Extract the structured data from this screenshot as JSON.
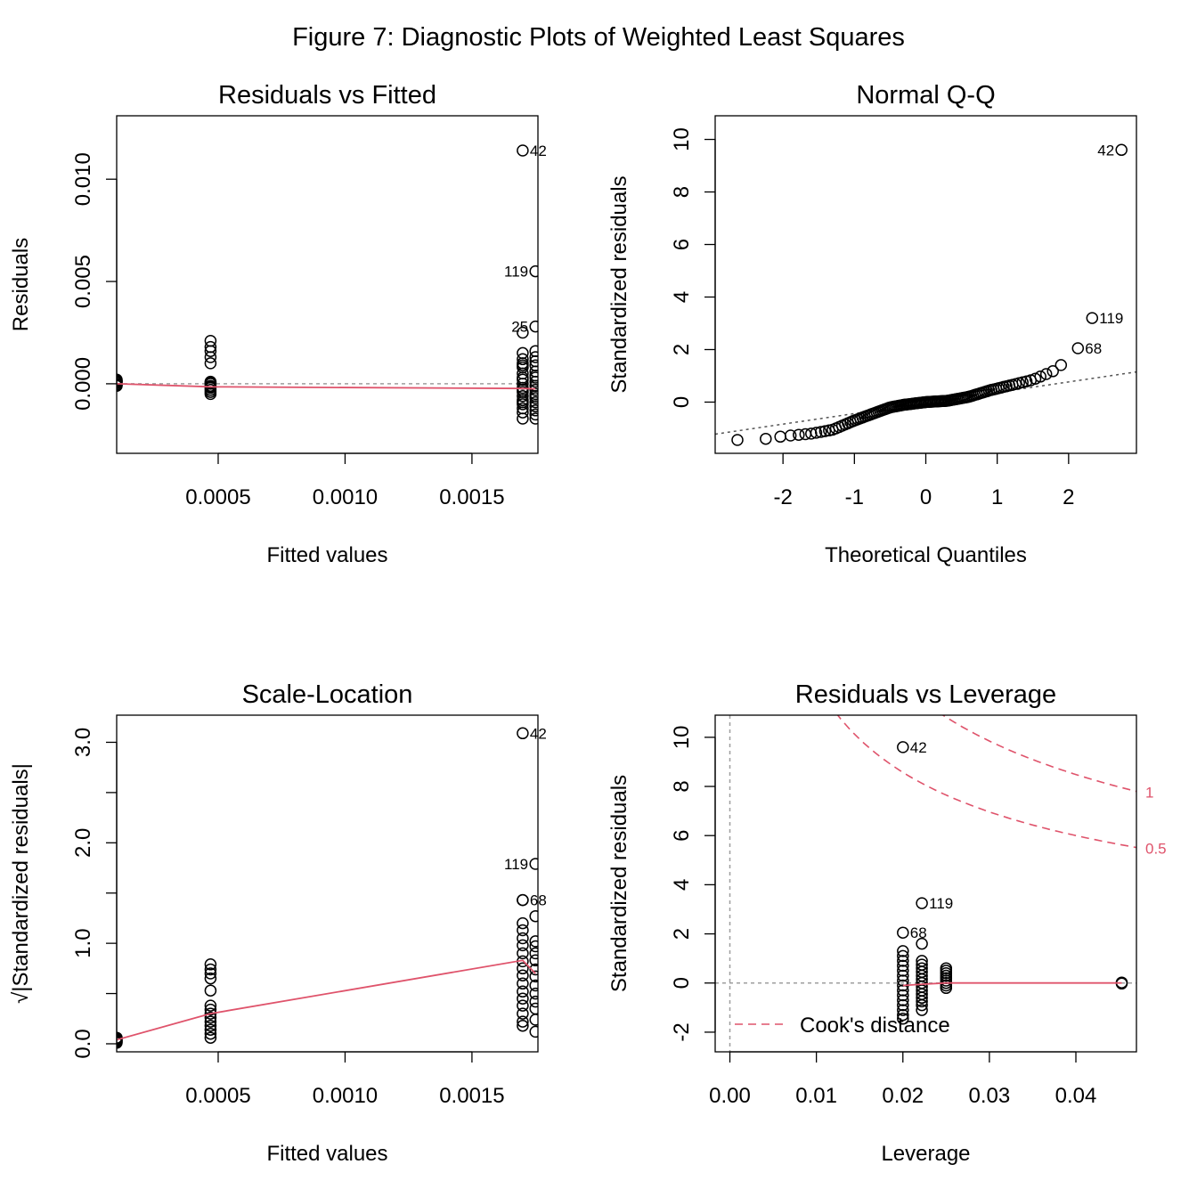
{
  "figure_title": "Figure 7: Diagnostic Plots of Weighted Least Squares",
  "colors": {
    "smooth": "#DF536B",
    "cooks": "#DF536B",
    "ref": "#9E9E9E",
    "qqline": "#555555",
    "points": "#000000"
  },
  "chart_data": [
    {
      "type": "scatter",
      "title": "Residuals vs Fitted",
      "xlabel": "Fitted values",
      "ylabel": "Residuals",
      "xlim": [
        0.0001,
        0.00176
      ],
      "ylim": [
        -0.0034,
        0.0131
      ],
      "xticks": [
        0.0005,
        0.001,
        0.0015
      ],
      "xtick_labels": [
        "0.0005",
        "0.0010",
        "0.0015"
      ],
      "yticks": [
        0.0,
        0.005,
        0.01
      ],
      "ytick_labels": [
        "0.000",
        "0.005",
        "0.010"
      ],
      "groups": [
        {
          "x": 0.0001,
          "y": [
            0.0002,
            0.00012,
            5e-05,
            -2e-05,
            -6e-05,
            0.00015,
            -0.0001,
            0.0001
          ]
        },
        {
          "x": 0.00047,
          "y": [
            0.0021,
            0.0018,
            0.0016,
            0.0013,
            0.001,
            0.0001,
            -0.0001,
            -0.0002,
            -0.0003,
            -0.0004,
            -0.0005,
            0.0,
            -0.00015,
            5e-05
          ]
        },
        {
          "x": 0.0017,
          "y": [
            0.0025,
            0.0015,
            0.0012,
            0.001,
            0.0008,
            0.0005,
            0.0003,
            0.0,
            -0.0002,
            -0.0004,
            -0.0006,
            -0.0008,
            -0.001,
            -0.0012,
            -0.0014,
            -0.0017,
            0.0009,
            -0.0009,
            0.0002,
            -0.0003
          ]
        },
        {
          "x": 0.00175,
          "y": [
            0.0016,
            0.0013,
            0.0011,
            0.0009,
            0.0006,
            0.0004,
            0.0001,
            -0.0001,
            -0.0003,
            -0.0005,
            -0.0007,
            -0.0009,
            -0.0011,
            -0.0013,
            -0.0015,
            -0.0017,
            0.0003,
            -0.0006
          ]
        }
      ],
      "labeled_points": [
        {
          "label": "42",
          "x": 0.0017,
          "y": 0.0114
        },
        {
          "label": "119",
          "x": 0.00175,
          "y": 0.0055
        },
        {
          "label": "25",
          "x": 0.00175,
          "y": 0.0028
        }
      ],
      "smooth": {
        "x": [
          0.0001,
          0.00047,
          0.0017,
          0.00175
        ],
        "y": [
          0.0,
          -0.00015,
          -0.00023,
          -0.00025
        ]
      },
      "hline": 0.0
    },
    {
      "type": "scatter",
      "title": "Normal Q-Q",
      "xlabel": "Theoretical Quantiles",
      "ylabel": "Standardized residuals",
      "xlim": [
        -2.95,
        2.95
      ],
      "ylim": [
        -1.95,
        10.9
      ],
      "xticks": [
        -2,
        -1,
        0,
        1,
        2
      ],
      "xtick_labels": [
        "-2",
        "-1",
        "0",
        "1",
        "2"
      ],
      "yticks": [
        0,
        2,
        4,
        6,
        8,
        10
      ],
      "ytick_labels": [
        "0",
        "2",
        "4",
        "6",
        "8",
        "10"
      ],
      "n_points": 120,
      "quantile_curve": {
        "q": [
          -2.74,
          -2.3,
          -2.0,
          -1.6,
          -1.3,
          -1.0,
          -0.7,
          -0.5,
          -0.3,
          0.0,
          0.3,
          0.6,
          0.9,
          1.2,
          1.5,
          1.8,
          2.0,
          2.13
        ],
        "y": [
          -1.45,
          -1.42,
          -1.3,
          -1.2,
          -1.05,
          -0.7,
          -0.4,
          -0.2,
          -0.1,
          0.0,
          0.05,
          0.2,
          0.45,
          0.65,
          0.85,
          1.2,
          1.65,
          2.05
        ]
      },
      "labeled_points": [
        {
          "label": "42",
          "x": 2.74,
          "y": 9.6
        },
        {
          "label": "119",
          "x": 2.33,
          "y": 3.2
        },
        {
          "label": "68",
          "x": 2.13,
          "y": 2.05
        }
      ],
      "qq_line": {
        "x": [
          -2.95,
          2.95
        ],
        "y": [
          -1.22,
          1.15
        ]
      }
    },
    {
      "type": "scatter",
      "title": "Scale-Location",
      "xlabel": "Fitted values",
      "ylabel": "√|Standardized residuals|",
      "xlim": [
        0.0001,
        0.00176
      ],
      "ylim": [
        -0.08,
        3.27
      ],
      "xticks": [
        0.0005,
        0.001,
        0.0015
      ],
      "xtick_labels": [
        "0.0005",
        "0.0010",
        "0.0015"
      ],
      "yticks": [
        0.0,
        0.5,
        1.0,
        1.5,
        2.0,
        2.5,
        3.0
      ],
      "ytick_labels": [
        "0.0",
        "",
        "1.0",
        "",
        "2.0",
        "",
        "3.0"
      ],
      "groups": [
        {
          "x": 0.0001,
          "y": [
            0.06,
            0.04,
            0.03,
            0.02,
            0.05,
            0.01
          ]
        },
        {
          "x": 0.00047,
          "y": [
            0.79,
            0.74,
            0.7,
            0.65,
            0.53,
            0.38,
            0.34,
            0.3,
            0.26,
            0.22,
            0.18,
            0.14,
            0.1,
            0.06
          ]
        },
        {
          "x": 0.0017,
          "y": [
            1.43,
            1.2,
            1.13,
            1.05,
            0.98,
            0.9,
            0.82,
            0.75,
            0.68,
            0.6,
            0.52,
            0.45,
            0.38,
            0.3,
            0.22,
            0.18
          ]
        },
        {
          "x": 0.00175,
          "y": [
            1.27,
            1.02,
            0.97,
            0.9,
            0.83,
            0.74,
            0.67,
            0.58,
            0.5,
            0.42,
            0.35,
            0.24,
            0.12
          ]
        }
      ],
      "labeled_points": [
        {
          "label": "42",
          "x": 0.0017,
          "y": 3.09
        },
        {
          "label": "119",
          "x": 0.00175,
          "y": 1.79
        },
        {
          "label": "68",
          "x": 0.0017,
          "y": 1.43
        }
      ],
      "smooth": {
        "x": [
          0.0001,
          0.00047,
          0.0017,
          0.00175
        ],
        "y": [
          0.04,
          0.3,
          0.83,
          0.7
        ]
      }
    },
    {
      "type": "scatter",
      "title": "Residuals vs Leverage",
      "xlabel": "Leverage",
      "ylabel": "Standardized residuals",
      "xlim": [
        -0.0017,
        0.047
      ],
      "ylim": [
        -2.8,
        10.9
      ],
      "xticks": [
        0.0,
        0.01,
        0.02,
        0.03,
        0.04
      ],
      "xtick_labels": [
        "0.00",
        "0.01",
        "0.02",
        "0.03",
        "0.04"
      ],
      "yticks": [
        -2,
        0,
        2,
        4,
        6,
        8,
        10
      ],
      "ytick_labels": [
        "-2",
        "0",
        "2",
        "4",
        "6",
        "8",
        "10"
      ],
      "groups": [
        {
          "x": 0.02,
          "y": [
            1.3,
            1.1,
            0.9,
            0.7,
            0.5,
            0.3,
            0.1,
            -0.1,
            -0.3,
            -0.5,
            -0.7,
            -0.9,
            -1.1,
            -1.3,
            -1.45
          ]
        },
        {
          "x": 0.0222,
          "y": [
            1.6,
            0.9,
            0.75,
            0.6,
            0.45,
            0.3,
            0.15,
            0.0,
            -0.15,
            -0.3,
            -0.45,
            -0.6,
            -0.75,
            -0.9,
            -1.1
          ]
        },
        {
          "x": 0.025,
          "y": [
            0.6,
            0.5,
            0.4,
            0.3,
            0.2,
            0.1,
            0.0,
            -0.1,
            -0.2
          ]
        },
        {
          "x": 0.0453,
          "y": [
            0.0,
            0.02,
            -0.02
          ]
        }
      ],
      "labeled_points": [
        {
          "label": "42",
          "x": 0.02,
          "y": 9.6
        },
        {
          "label": "119",
          "x": 0.0222,
          "y": 3.25
        },
        {
          "label": "68",
          "x": 0.02,
          "y": 2.05
        }
      ],
      "smooth": {
        "x": [
          0.02,
          0.0222,
          0.025,
          0.0453
        ],
        "y": [
          -0.1,
          -0.05,
          0.0,
          0.0
        ]
      },
      "cooks_levels": [
        0.5,
        1
      ],
      "cooks_labels": [
        "0.5",
        "1"
      ],
      "cooks_p": 3,
      "legend": {
        "label": "Cook's distance",
        "position": "bottom-left"
      },
      "hline": 0,
      "vline": 0
    }
  ]
}
